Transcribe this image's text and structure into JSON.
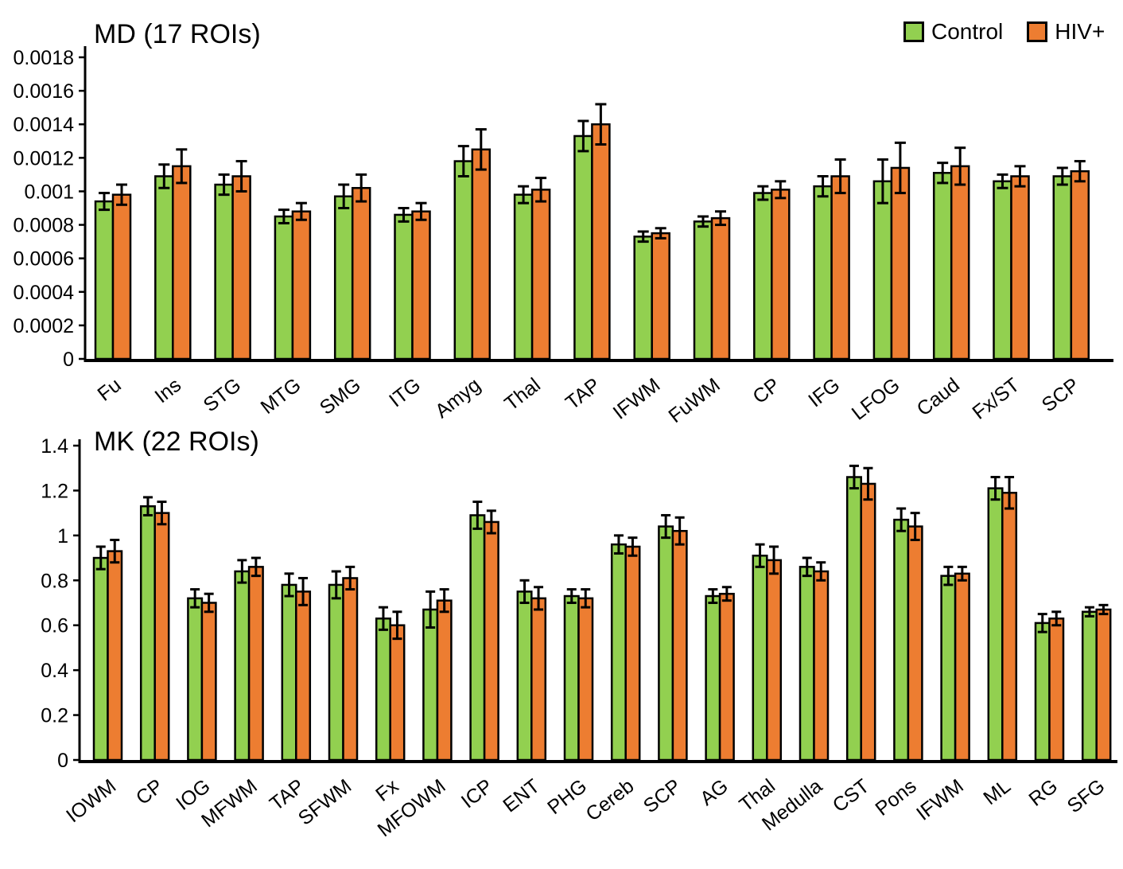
{
  "legend": {
    "items": [
      {
        "label": "Control",
        "color": "#92d050"
      },
      {
        "label": "HIV+",
        "color": "#ed7d31"
      }
    ]
  },
  "chart_data": [
    {
      "type": "bar",
      "title": "MD (17 ROIs)",
      "xlabel": "",
      "ylabel": "",
      "grid": false,
      "legend_position": "top-right",
      "ylim": [
        0,
        0.0018
      ],
      "yticks": [
        0,
        0.0002,
        0.0004,
        0.0006,
        0.0008,
        0.001,
        0.0012,
        0.0014,
        0.0016,
        0.0018
      ],
      "ytick_labels": [
        "0",
        "0.0002",
        "0.0004",
        "0.0006",
        "0.0008",
        "0.001",
        "0.0012",
        "0.0014",
        "0.0016",
        "0.0018"
      ],
      "categories": [
        "Fu",
        "Ins",
        "STG",
        "MTG",
        "SMG",
        "ITG",
        "Amyg",
        "Thal",
        "TAP",
        "IFWM",
        "FuWM",
        "CP",
        "IFG",
        "LFOG",
        "Caud",
        "Fx/ST",
        "SCP"
      ],
      "series": [
        {
          "name": "Control",
          "color": "#92d050",
          "values": [
            0.00094,
            0.00109,
            0.00104,
            0.00085,
            0.00097,
            0.00086,
            0.00118,
            0.00098,
            0.00133,
            0.00073,
            0.00082,
            0.00099,
            0.00103,
            0.00106,
            0.00111,
            0.00106,
            0.00109
          ],
          "errors": [
            5e-05,
            7e-05,
            6e-05,
            4e-05,
            7e-05,
            4e-05,
            9e-05,
            5e-05,
            9e-05,
            3e-05,
            3e-05,
            4e-05,
            6e-05,
            0.00013,
            6e-05,
            4e-05,
            5e-05
          ]
        },
        {
          "name": "HIV+",
          "color": "#ed7d31",
          "values": [
            0.00098,
            0.00115,
            0.00109,
            0.00088,
            0.00102,
            0.00088,
            0.00125,
            0.00101,
            0.0014,
            0.00075,
            0.00084,
            0.00101,
            0.00109,
            0.00114,
            0.00115,
            0.00109,
            0.00112
          ],
          "errors": [
            6e-05,
            0.0001,
            9e-05,
            5e-05,
            8e-05,
            5e-05,
            0.00012,
            7e-05,
            0.00012,
            3e-05,
            4e-05,
            5e-05,
            0.0001,
            0.00015,
            0.00011,
            6e-05,
            6e-05
          ]
        }
      ]
    },
    {
      "type": "bar",
      "title": "MK (22 ROIs)",
      "xlabel": "",
      "ylabel": "",
      "grid": false,
      "legend_position": "none",
      "ylim": [
        0,
        1.4
      ],
      "yticks": [
        0,
        0.2,
        0.4,
        0.6,
        0.8,
        1,
        1.2,
        1.4
      ],
      "ytick_labels": [
        "0",
        "0.2",
        "0.4",
        "0.6",
        "0.8",
        "1",
        "1.2",
        "1.4"
      ],
      "categories": [
        "IOWM",
        "CP",
        "IOG",
        "MFWM",
        "TAP",
        "SFWM",
        "Fx",
        "MFOWM",
        "ICP",
        "ENT",
        "PHG",
        "Cereb",
        "SCP",
        "AG",
        "Thal",
        "Medulla",
        "CST",
        "Pons",
        "IFWM",
        "ML",
        "RG",
        "SFG"
      ],
      "series": [
        {
          "name": "Control",
          "color": "#92d050",
          "values": [
            0.9,
            1.13,
            0.72,
            0.84,
            0.78,
            0.78,
            0.63,
            0.67,
            1.09,
            0.75,
            0.73,
            0.96,
            1.04,
            0.73,
            0.91,
            0.86,
            1.26,
            1.07,
            0.82,
            1.21,
            0.61,
            0.66
          ],
          "errors": [
            0.05,
            0.04,
            0.04,
            0.05,
            0.05,
            0.06,
            0.05,
            0.08,
            0.06,
            0.05,
            0.03,
            0.04,
            0.05,
            0.03,
            0.05,
            0.04,
            0.05,
            0.05,
            0.04,
            0.05,
            0.04,
            0.02
          ]
        },
        {
          "name": "HIV+",
          "color": "#ed7d31",
          "values": [
            0.93,
            1.1,
            0.7,
            0.86,
            0.75,
            0.81,
            0.6,
            0.71,
            1.06,
            0.72,
            0.72,
            0.95,
            1.02,
            0.74,
            0.89,
            0.84,
            1.23,
            1.04,
            0.83,
            1.19,
            0.63,
            0.67
          ],
          "errors": [
            0.05,
            0.05,
            0.04,
            0.04,
            0.06,
            0.05,
            0.06,
            0.05,
            0.05,
            0.05,
            0.04,
            0.04,
            0.06,
            0.03,
            0.06,
            0.04,
            0.07,
            0.06,
            0.03,
            0.07,
            0.03,
            0.02
          ]
        }
      ]
    }
  ]
}
